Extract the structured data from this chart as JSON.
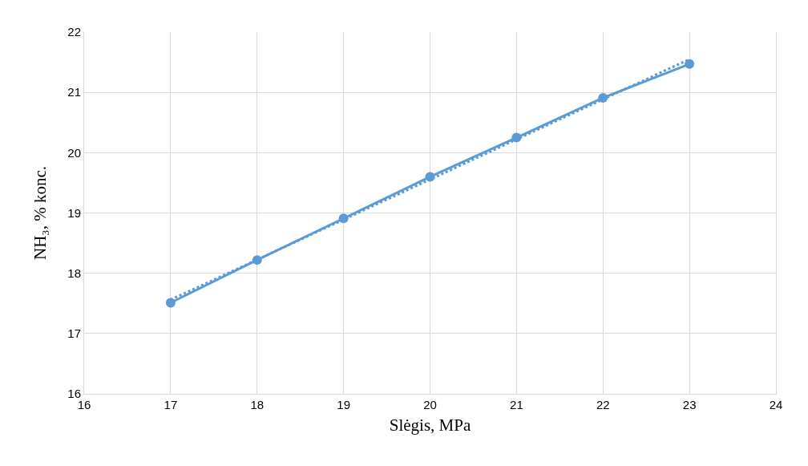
{
  "chart_data": {
    "type": "line",
    "xlabel": "Slėgis, MPa",
    "ylabel": "NH₃, % konc.",
    "x": [
      17,
      18,
      19,
      20,
      21,
      22,
      23
    ],
    "series": [
      {
        "color": "#5b9bd5",
        "values": [
          17.51,
          18.22,
          18.91,
          19.6,
          20.25,
          20.91,
          21.47
        ],
        "marker": "circle",
        "line_style": "solid"
      },
      {
        "type": "line",
        "color": "#5b9bd5",
        "x": [
          17,
          23
        ],
        "values": [
          17.56,
          21.55
        ],
        "marker": "none",
        "line_style": "dotted"
      }
    ],
    "xlim": [
      16,
      24
    ],
    "xticks": [
      16,
      17,
      18,
      19,
      20,
      21,
      22,
      23,
      24
    ],
    "ylim": [
      16,
      22
    ],
    "yticks": [
      16,
      17,
      18,
      19,
      20,
      21,
      22
    ],
    "grid": true
  }
}
